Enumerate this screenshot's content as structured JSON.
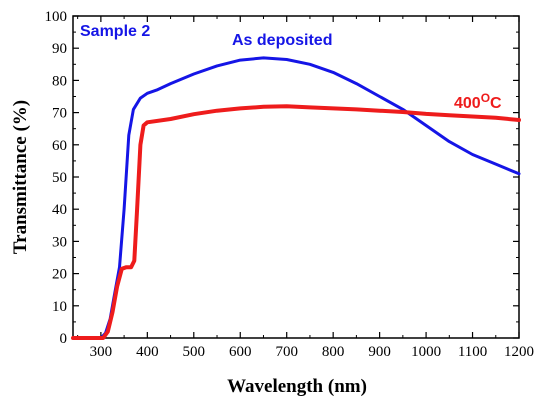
{
  "chart_data": {
    "type": "line",
    "xlabel": "Wavelength (nm)",
    "ylabel": "Transmittance (%)",
    "xlim": [
      240,
      1200
    ],
    "ylim": [
      0,
      100
    ],
    "x_ticks": [
      300,
      400,
      500,
      600,
      700,
      800,
      900,
      1000,
      1100,
      1200
    ],
    "y_ticks": [
      0,
      10,
      20,
      30,
      40,
      50,
      60,
      70,
      80,
      90,
      100
    ],
    "grid": false,
    "annotation": "Sample 2",
    "series": [
      {
        "name": "As deposited",
        "color": "#1515e6",
        "points": [
          [
            240,
            0
          ],
          [
            300,
            0
          ],
          [
            310,
            1.5
          ],
          [
            320,
            6
          ],
          [
            330,
            14
          ],
          [
            340,
            22
          ],
          [
            350,
            40
          ],
          [
            360,
            63
          ],
          [
            370,
            71
          ],
          [
            385,
            74.5
          ],
          [
            400,
            76
          ],
          [
            420,
            77
          ],
          [
            450,
            79
          ],
          [
            500,
            82
          ],
          [
            550,
            84.5
          ],
          [
            600,
            86.3
          ],
          [
            650,
            87
          ],
          [
            700,
            86.5
          ],
          [
            750,
            85
          ],
          [
            800,
            82.5
          ],
          [
            850,
            79
          ],
          [
            900,
            75
          ],
          [
            950,
            71
          ],
          [
            1000,
            66
          ],
          [
            1050,
            61
          ],
          [
            1100,
            57
          ],
          [
            1150,
            54
          ],
          [
            1200,
            51
          ]
        ]
      },
      {
        "name": "400°C",
        "name_base": "400",
        "name_sup": "O",
        "name_tail": "C",
        "color": "#ee1c1c",
        "points": [
          [
            240,
            0
          ],
          [
            305,
            0
          ],
          [
            315,
            2
          ],
          [
            325,
            8
          ],
          [
            335,
            16
          ],
          [
            345,
            21.5
          ],
          [
            355,
            22
          ],
          [
            365,
            22
          ],
          [
            372,
            24
          ],
          [
            378,
            40
          ],
          [
            385,
            60
          ],
          [
            392,
            66
          ],
          [
            400,
            67
          ],
          [
            450,
            68
          ],
          [
            500,
            69.5
          ],
          [
            550,
            70.6
          ],
          [
            600,
            71.3
          ],
          [
            650,
            71.8
          ],
          [
            700,
            72
          ],
          [
            750,
            71.6
          ],
          [
            800,
            71.3
          ],
          [
            850,
            71
          ],
          [
            900,
            70.6
          ],
          [
            950,
            70.2
          ],
          [
            1000,
            69.6
          ],
          [
            1050,
            69.2
          ],
          [
            1100,
            68.8
          ],
          [
            1150,
            68.4
          ],
          [
            1200,
            67.7
          ]
        ]
      }
    ]
  }
}
